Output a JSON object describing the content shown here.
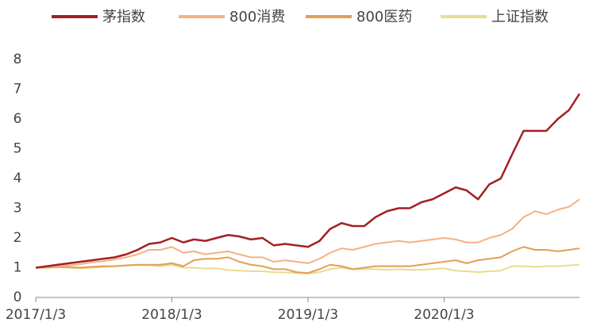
{
  "chart_data": {
    "type": "line",
    "x": [
      "2017/1/3",
      "2017/2/3",
      "2017/3/3",
      "2017/4/3",
      "2017/5/3",
      "2017/6/3",
      "2017/7/3",
      "2017/8/3",
      "2017/9/3",
      "2017/10/3",
      "2017/11/3",
      "2017/12/3",
      "2018/1/3",
      "2018/2/3",
      "2018/3/3",
      "2018/4/3",
      "2018/5/3",
      "2018/6/3",
      "2018/7/3",
      "2018/8/3",
      "2018/9/3",
      "2018/10/3",
      "2018/11/3",
      "2018/12/3",
      "2019/1/3",
      "2019/2/3",
      "2019/3/3",
      "2019/4/3",
      "2019/5/3",
      "2019/6/3",
      "2019/7/3",
      "2019/8/3",
      "2019/9/3",
      "2019/10/3",
      "2019/11/3",
      "2019/12/3",
      "2020/1/3",
      "2020/2/3",
      "2020/3/3",
      "2020/4/3",
      "2020/5/3",
      "2020/6/3",
      "2020/7/3",
      "2020/8/3",
      "2020/9/3",
      "2020/10/3",
      "2020/11/3",
      "2020/12/3",
      "2020/12/31"
    ],
    "series": [
      {
        "name": "茅指数",
        "color": "#a31f24",
        "values": [
          1.0,
          1.05,
          1.1,
          1.15,
          1.2,
          1.25,
          1.3,
          1.35,
          1.45,
          1.6,
          1.8,
          1.85,
          2.0,
          1.85,
          1.95,
          1.9,
          2.0,
          2.1,
          2.05,
          1.95,
          2.0,
          1.75,
          1.8,
          1.75,
          1.7,
          1.9,
          2.3,
          2.5,
          2.4,
          2.4,
          2.7,
          2.9,
          3.0,
          3.0,
          3.2,
          3.3,
          3.5,
          3.7,
          3.6,
          3.3,
          3.8,
          4.0,
          4.8,
          5.6,
          5.6,
          5.6,
          6.0,
          6.3,
          6.85
        ]
      },
      {
        "name": "800消费",
        "color": "#f4b183",
        "values": [
          1.0,
          1.02,
          1.05,
          1.08,
          1.12,
          1.18,
          1.22,
          1.28,
          1.35,
          1.45,
          1.6,
          1.6,
          1.7,
          1.5,
          1.55,
          1.45,
          1.5,
          1.55,
          1.45,
          1.35,
          1.35,
          1.2,
          1.25,
          1.2,
          1.15,
          1.3,
          1.5,
          1.65,
          1.6,
          1.7,
          1.8,
          1.85,
          1.9,
          1.85,
          1.9,
          1.95,
          2.0,
          1.95,
          1.85,
          1.85,
          2.0,
          2.1,
          2.3,
          2.7,
          2.9,
          2.8,
          2.95,
          3.05,
          3.3
        ]
      },
      {
        "name": "800医药",
        "color": "#e0a054",
        "values": [
          1.0,
          1.0,
          1.02,
          1.02,
          1.0,
          1.03,
          1.05,
          1.05,
          1.08,
          1.1,
          1.1,
          1.1,
          1.15,
          1.05,
          1.25,
          1.3,
          1.3,
          1.35,
          1.2,
          1.1,
          1.05,
          0.95,
          0.95,
          0.85,
          0.82,
          0.95,
          1.1,
          1.05,
          0.95,
          1.0,
          1.05,
          1.05,
          1.05,
          1.05,
          1.1,
          1.15,
          1.2,
          1.25,
          1.15,
          1.25,
          1.3,
          1.35,
          1.55,
          1.7,
          1.6,
          1.6,
          1.55,
          1.6,
          1.65
        ]
      },
      {
        "name": "上证指数",
        "color": "#e8dc8e",
        "values": [
          1.0,
          1.0,
          1.02,
          1.0,
          0.98,
          1.0,
          1.02,
          1.05,
          1.07,
          1.08,
          1.08,
          1.05,
          1.1,
          1.0,
          1.0,
          0.97,
          0.98,
          0.92,
          0.9,
          0.88,
          0.88,
          0.85,
          0.84,
          0.82,
          0.8,
          0.85,
          0.95,
          1.0,
          0.95,
          0.95,
          0.95,
          0.93,
          0.95,
          0.93,
          0.93,
          0.95,
          0.98,
          0.9,
          0.88,
          0.85,
          0.88,
          0.9,
          1.05,
          1.05,
          1.03,
          1.05,
          1.05,
          1.08,
          1.1
        ]
      }
    ],
    "xlim": [
      "2017/1/3",
      "2020/12/31"
    ],
    "xticks": [
      "2017/1/3",
      "2018/1/3",
      "2019/1/3",
      "2020/1/3"
    ],
    "ylim": [
      0,
      8
    ],
    "yticks": [
      0,
      1,
      2,
      3,
      4,
      5,
      6,
      7,
      8
    ],
    "grid": false
  }
}
